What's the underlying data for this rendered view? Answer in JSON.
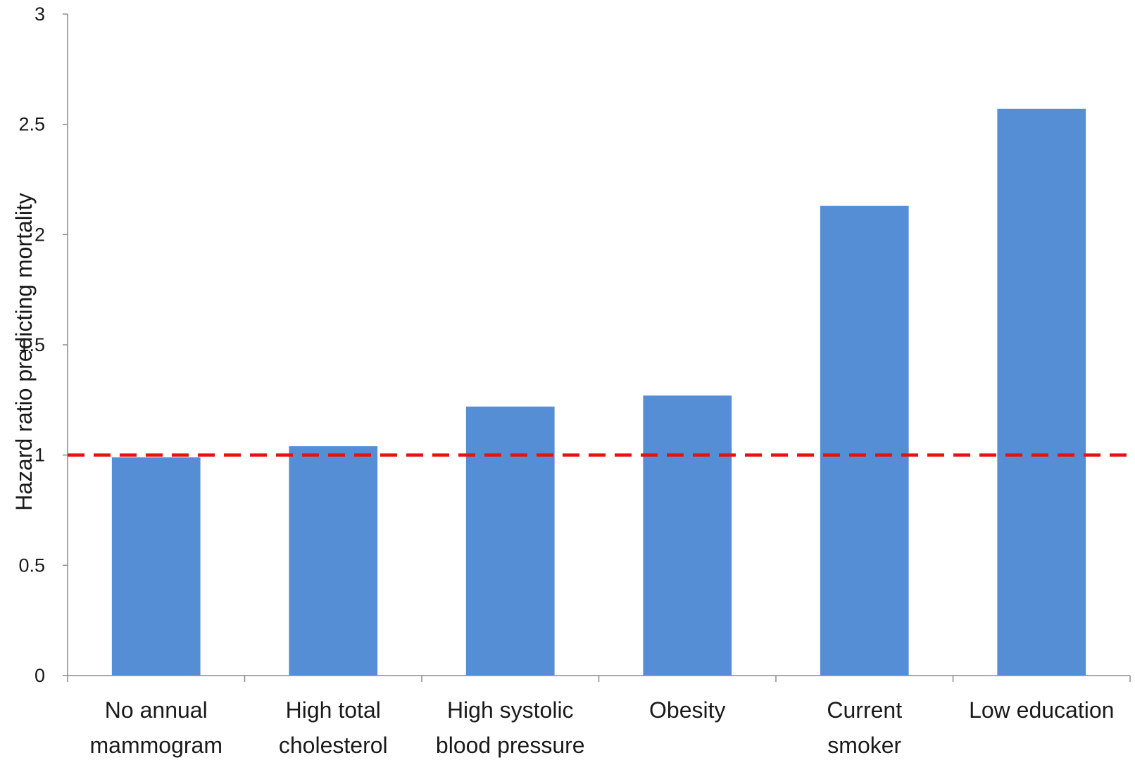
{
  "chart_data": {
    "type": "bar",
    "categories": [
      [
        "No annual",
        "mammogram"
      ],
      [
        "High total",
        "cholesterol"
      ],
      [
        "High systolic",
        "blood pressure"
      ],
      [
        "Obesity"
      ],
      [
        "Current",
        "smoker"
      ],
      [
        "Low education"
      ]
    ],
    "values": [
      0.99,
      1.04,
      1.22,
      1.27,
      2.13,
      2.57
    ],
    "ylabel": "Hazard ratio predicting mortality",
    "xlabel": "",
    "ylim": [
      0,
      3
    ],
    "yticks": [
      0,
      0.5,
      1,
      1.5,
      2,
      2.5,
      3
    ],
    "ytick_labels": [
      "0",
      "0.5",
      "1",
      "1.5",
      "2",
      "2.5",
      "3"
    ],
    "reference_line": {
      "value": 1,
      "style": "dashed",
      "color": "#e81010"
    },
    "bar_color": "#558ed5",
    "axis_color": "#8c8c8c",
    "grid": false,
    "legend": "none"
  }
}
